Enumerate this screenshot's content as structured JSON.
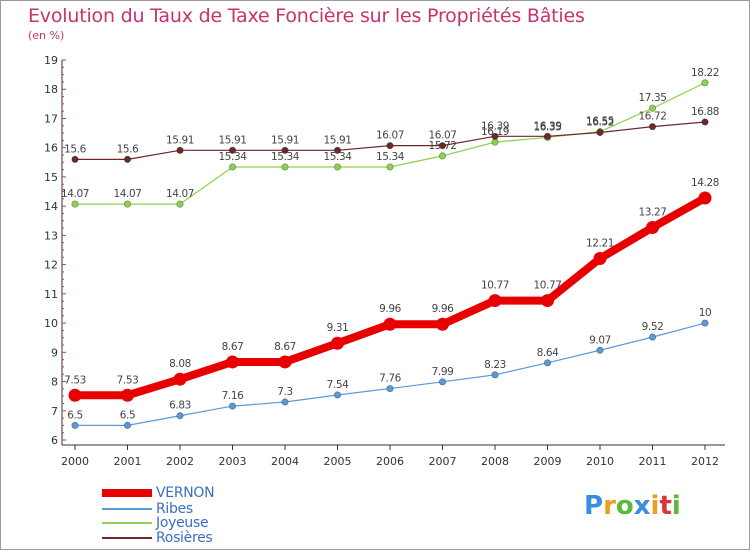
{
  "title": "Evolution du Taux de Taxe Foncière sur les Propriétés Bâties",
  "unit_label": "(en %)",
  "logo": {
    "letters": [
      {
        "ch": "P",
        "color": "#3a8ee0"
      },
      {
        "ch": "r",
        "color": "#e8a020"
      },
      {
        "ch": "o",
        "color": "#5cb83c"
      },
      {
        "ch": "x",
        "color": "#3a8ee0"
      },
      {
        "ch": "i",
        "color": "#e8a020"
      },
      {
        "ch": "t",
        "color": "#d83838"
      },
      {
        "ch": "i",
        "color": "#5cb83c"
      }
    ]
  },
  "chart_data": {
    "type": "line",
    "title": "Evolution du Taux de Taxe Foncière sur les Propriétés Bâties",
    "ylabel": "(en %)",
    "xlabel": "",
    "x": [
      "2000",
      "2001",
      "2002",
      "2003",
      "2004",
      "2005",
      "2006",
      "2007",
      "2008",
      "2009",
      "2010",
      "2011",
      "2012"
    ],
    "ylim": [
      6,
      19
    ],
    "yticks": [
      6,
      7,
      8,
      9,
      10,
      11,
      12,
      13,
      14,
      15,
      16,
      17,
      18,
      19
    ],
    "grid": false,
    "legend_position": "bottom-left",
    "series": [
      {
        "name": "VERNON",
        "color": "#e80000",
        "emphasis": true,
        "values": [
          7.53,
          7.53,
          8.08,
          8.67,
          8.67,
          9.31,
          9.96,
          9.96,
          10.77,
          10.77,
          12.21,
          13.27,
          14.28
        ],
        "labels": [
          "7.53",
          "7.53",
          "8.08",
          "8.67",
          "8.67",
          "9.31",
          "9.96",
          "9.96",
          "10.77",
          "10.77",
          "12.21",
          "13.27",
          "14.28"
        ]
      },
      {
        "name": "Ribes",
        "color": "#5a9ad8",
        "values": [
          6.5,
          6.5,
          6.83,
          7.16,
          7.3,
          7.54,
          7.76,
          7.99,
          8.23,
          8.64,
          9.07,
          9.52,
          10
        ],
        "labels": [
          "6.5",
          "6.5",
          "6.83",
          "7.16",
          "7.3",
          "7.54",
          "7.76",
          "7.99",
          "8.23",
          "8.64",
          "9.07",
          "9.52",
          "10"
        ]
      },
      {
        "name": "Joyeuse",
        "color": "#8cd250",
        "values": [
          14.07,
          14.07,
          14.07,
          15.34,
          15.34,
          15.34,
          15.34,
          15.72,
          16.19,
          16.35,
          16.55,
          17.35,
          18.22
        ],
        "labels": [
          "14.07",
          "14.07",
          "14.07",
          "15.34",
          "15.34",
          "15.34",
          "15.34",
          "15.72",
          "16.19",
          "16.35",
          "16.55",
          "17.35",
          "18.22"
        ]
      },
      {
        "name": "Rosières",
        "color": "#6e2828",
        "values": [
          15.6,
          15.6,
          15.91,
          15.91,
          15.91,
          15.91,
          16.07,
          16.07,
          16.39,
          16.39,
          16.52,
          16.72,
          16.88
        ],
        "labels": [
          "15.6",
          "15.6",
          "15.91",
          "15.91",
          "15.91",
          "15.91",
          "16.07",
          "16.07",
          "16.39",
          "16.39",
          "16.52",
          "16.72",
          "16.88"
        ]
      }
    ]
  }
}
